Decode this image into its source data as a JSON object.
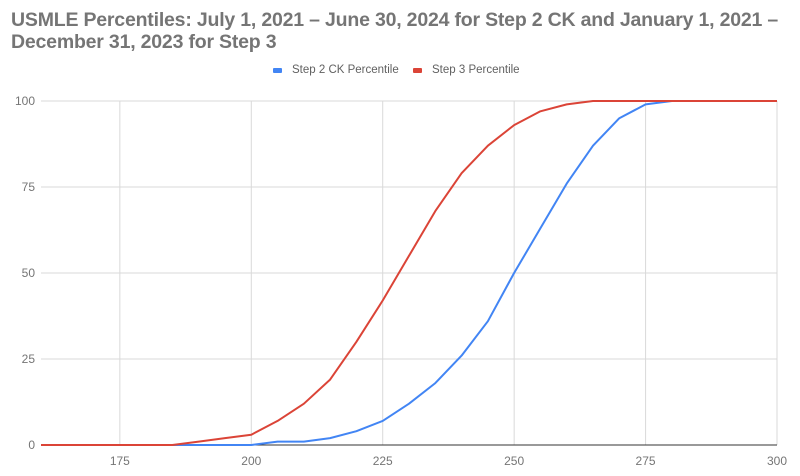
{
  "title": "USMLE Percentiles: July 1, 2021 – June 30, 2024 for Step 2 CK and January 1, 2021 – December 31, 2023 for Step 3",
  "title_line1": "USMLE Percentiles: July 1, 2021 – June 30, 2024 for Step 2 CK and January 1, 2021 –",
  "title_line2": "December 31, 2023 for Step 3",
  "legend": [
    {
      "label": "Step 2 CK Percentile",
      "color": "#4285f4"
    },
    {
      "label": "Step 3 Percentile",
      "color": "#db4437"
    }
  ],
  "chart_data": {
    "type": "line",
    "title": "USMLE Percentiles: July 1, 2021 – June 30, 2024 for Step 2 CK and January 1, 2021 – December 31, 2023 for Step 3",
    "xlabel": "",
    "ylabel": "",
    "x": [
      160,
      165,
      170,
      175,
      180,
      185,
      190,
      195,
      200,
      205,
      210,
      215,
      220,
      225,
      230,
      235,
      240,
      245,
      250,
      255,
      260,
      265,
      270,
      275,
      280,
      285,
      290,
      295,
      300
    ],
    "series": [
      {
        "name": "Step 2 CK Percentile",
        "color": "#4285f4",
        "values": [
          0,
          0,
          0,
          0,
          0,
          0,
          0,
          0,
          0,
          1,
          1,
          2,
          4,
          7,
          12,
          18,
          26,
          36,
          50,
          63,
          76,
          87,
          95,
          99,
          100,
          100,
          100,
          100,
          100
        ]
      },
      {
        "name": "Step 3 Percentile",
        "color": "#db4437",
        "values": [
          0,
          0,
          0,
          0,
          0,
          0,
          1,
          2,
          3,
          7,
          12,
          19,
          30,
          42,
          55,
          68,
          79,
          87,
          93,
          97,
          99,
          100,
          100,
          100,
          100,
          100,
          100,
          100,
          100
        ]
      }
    ],
    "xlim": [
      160,
      300
    ],
    "ylim": [
      0,
      100
    ],
    "x_ticks": [
      175,
      200,
      225,
      250,
      275,
      300
    ],
    "y_ticks": [
      0,
      25,
      50,
      75,
      100
    ],
    "grid": true,
    "legend_position": "top"
  }
}
